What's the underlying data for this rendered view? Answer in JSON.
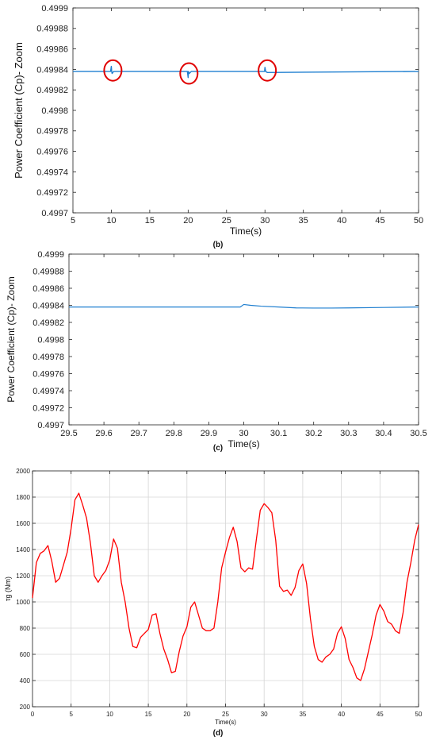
{
  "captions": {
    "b": "(b)",
    "c": "(c)",
    "d": "(d)"
  },
  "colors": {
    "cp_line": "#1f7fd0",
    "torque_line": "#ff0000",
    "highlight": "#e00000",
    "grid": "#d6d6d6",
    "axis": "#222222"
  },
  "chart_data": [
    {
      "type": "line",
      "xlabel": "Time(s)",
      "ylabel": "Power Coefficient (Cp)- Zoom",
      "xlim": [
        5,
        50
      ],
      "ylim": [
        0.4997,
        0.4999
      ],
      "grid": false,
      "x_ticks": [
        5,
        10,
        15,
        20,
        25,
        30,
        35,
        40,
        45,
        50
      ],
      "x_tick_labels": [
        "5",
        "10",
        "15",
        "20",
        "25",
        "30",
        "35",
        "40",
        "45",
        "50"
      ],
      "y_ticks": [
        0.4997,
        0.49972,
        0.49974,
        0.49976,
        0.49978,
        0.4998,
        0.49982,
        0.49984,
        0.49986,
        0.49988,
        0.4999
      ],
      "y_tick_labels": [
        "0.4997",
        "0.49972",
        "0.49974",
        "0.49976",
        "0.49978",
        "0.4998",
        "0.49982",
        "0.49984",
        "0.49986",
        "0.49988",
        "0.4999"
      ],
      "series": [
        {
          "values_x": [
            5,
            9.9,
            10.0,
            10.05,
            10.1,
            10.3,
            19.9,
            20.0,
            20.05,
            20.15,
            20.4,
            29.95,
            30.0,
            30.1,
            30.3,
            50
          ],
          "values_y": [
            0.499838,
            0.499838,
            0.499843,
            0.499838,
            0.499836,
            0.499838,
            0.499838,
            0.499832,
            0.499838,
            0.499836,
            0.499838,
            0.499838,
            0.499842,
            0.499838,
            0.499837,
            0.499838
          ]
        }
      ],
      "annotations": [
        {
          "type": "circle",
          "x": 10.2,
          "y": 0.499839
        },
        {
          "type": "circle",
          "x": 20.1,
          "y": 0.499836
        },
        {
          "type": "circle",
          "x": 30.3,
          "y": 0.499839
        }
      ]
    },
    {
      "type": "line",
      "xlabel": "Time(s)",
      "ylabel": "Power Coefficient (Cp)- Zoom",
      "xlim": [
        29.5,
        30.5
      ],
      "ylim": [
        0.4997,
        0.4999
      ],
      "grid": false,
      "x_ticks": [
        29.5,
        29.6,
        29.7,
        29.8,
        29.9,
        30,
        30.1,
        30.2,
        30.3,
        30.4,
        30.5
      ],
      "x_tick_labels": [
        "29.5",
        "29.6",
        "29.7",
        "29.8",
        "29.9",
        "30",
        "30.1",
        "30.2",
        "30.3",
        "30.4",
        "30.5"
      ],
      "y_ticks": [
        0.4997,
        0.49972,
        0.49974,
        0.49976,
        0.49978,
        0.4998,
        0.49982,
        0.49984,
        0.49986,
        0.49988,
        0.4999
      ],
      "y_tick_labels": [
        "0.4997",
        "0.49972",
        "0.49974",
        "0.49976",
        "0.49978",
        "0.4998",
        "0.49982",
        "0.49984",
        "0.49986",
        "0.49988",
        "0.4999"
      ],
      "series": [
        {
          "values_x": [
            29.5,
            29.99,
            30.0,
            30.02,
            30.05,
            30.1,
            30.15,
            30.2,
            30.25,
            30.3,
            30.4,
            30.5
          ],
          "values_y": [
            0.499838,
            0.499838,
            0.499841,
            0.49984,
            0.499839,
            0.499838,
            0.499837,
            0.4998368,
            0.4998368,
            0.499837,
            0.4998375,
            0.499838
          ]
        }
      ]
    },
    {
      "type": "line",
      "xlabel": "Time(s)",
      "ylabel": "τg (Nm)",
      "xlim": [
        0,
        50
      ],
      "ylim": [
        200,
        2000
      ],
      "grid": true,
      "x_ticks": [
        0,
        5,
        10,
        15,
        20,
        25,
        30,
        35,
        40,
        45,
        50
      ],
      "x_tick_labels": [
        "0",
        "5",
        "10",
        "15",
        "20",
        "25",
        "30",
        "35",
        "40",
        "45",
        "50"
      ],
      "y_ticks": [
        200,
        400,
        600,
        800,
        1000,
        1200,
        1400,
        1600,
        1800,
        2000
      ],
      "y_tick_labels": [
        "200",
        "400",
        "600",
        "800",
        "1000",
        "1200",
        "1400",
        "1600",
        "1800",
        "2000"
      ],
      "series": [
        {
          "values_x": [
            0,
            0.5,
            1,
            1.5,
            2,
            2.5,
            3,
            3.5,
            4,
            4.5,
            5,
            5.5,
            6,
            6.5,
            7,
            7.5,
            8,
            8.5,
            9,
            9.5,
            10,
            10.5,
            11,
            11.5,
            12,
            12.5,
            13,
            13.5,
            14,
            14.5,
            15,
            15.5,
            16,
            16.5,
            17,
            17.5,
            18,
            18.5,
            19,
            19.5,
            20,
            20.5,
            21,
            21.5,
            22,
            22.5,
            23,
            23.5,
            24,
            24.5,
            25,
            25.5,
            26,
            26.5,
            27,
            27.5,
            28,
            28.5,
            29,
            29.5,
            30,
            30.5,
            31,
            31.5,
            32,
            32.5,
            33,
            33.5,
            34,
            34.5,
            35,
            35.5,
            36,
            36.5,
            37,
            37.5,
            38,
            38.5,
            39,
            39.5,
            40,
            40.5,
            41,
            41.5,
            42,
            42.5,
            43,
            43.5,
            44,
            44.5,
            45,
            45.5,
            46,
            46.5,
            47,
            47.5,
            48,
            48.5,
            49,
            49.5,
            50
          ],
          "values_y": [
            1030,
            1300,
            1370,
            1390,
            1430,
            1310,
            1150,
            1180,
            1280,
            1380,
            1560,
            1780,
            1830,
            1740,
            1640,
            1450,
            1200,
            1150,
            1200,
            1240,
            1320,
            1480,
            1410,
            1150,
            1000,
            800,
            660,
            650,
            730,
            760,
            790,
            900,
            910,
            760,
            640,
            560,
            460,
            470,
            620,
            740,
            810,
            960,
            1000,
            900,
            800,
            780,
            780,
            800,
            1000,
            1260,
            1380,
            1490,
            1570,
            1460,
            1260,
            1230,
            1260,
            1250,
            1480,
            1700,
            1750,
            1720,
            1680,
            1470,
            1120,
            1080,
            1090,
            1050,
            1110,
            1240,
            1290,
            1140,
            870,
            660,
            560,
            540,
            580,
            600,
            640,
            760,
            810,
            720,
            560,
            500,
            420,
            400,
            490,
            620,
            750,
            900,
            980,
            930,
            850,
            830,
            780,
            760,
            920,
            1150,
            1300,
            1470,
            1590
          ]
        }
      ]
    }
  ]
}
